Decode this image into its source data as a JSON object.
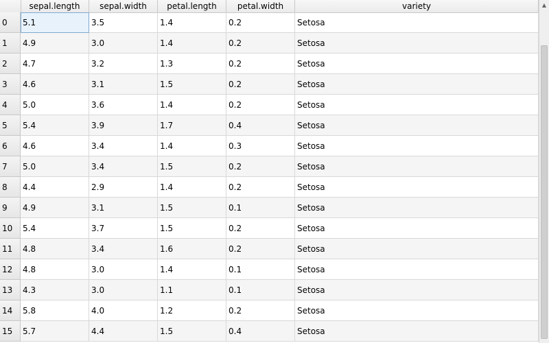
{
  "table": {
    "columns": [
      "sepal.length",
      "sepal.width",
      "petal.length",
      "petal.width",
      "variety"
    ],
    "rows": [
      {
        "index": "0",
        "cells": [
          "5.1",
          "3.5",
          "1.4",
          "0.2",
          "Setosa"
        ]
      },
      {
        "index": "1",
        "cells": [
          "4.9",
          "3.0",
          "1.4",
          "0.2",
          "Setosa"
        ]
      },
      {
        "index": "2",
        "cells": [
          "4.7",
          "3.2",
          "1.3",
          "0.2",
          "Setosa"
        ]
      },
      {
        "index": "3",
        "cells": [
          "4.6",
          "3.1",
          "1.5",
          "0.2",
          "Setosa"
        ]
      },
      {
        "index": "4",
        "cells": [
          "5.0",
          "3.6",
          "1.4",
          "0.2",
          "Setosa"
        ]
      },
      {
        "index": "5",
        "cells": [
          "5.4",
          "3.9",
          "1.7",
          "0.4",
          "Setosa"
        ]
      },
      {
        "index": "6",
        "cells": [
          "4.6",
          "3.4",
          "1.4",
          "0.3",
          "Setosa"
        ]
      },
      {
        "index": "7",
        "cells": [
          "5.0",
          "3.4",
          "1.5",
          "0.2",
          "Setosa"
        ]
      },
      {
        "index": "8",
        "cells": [
          "4.4",
          "2.9",
          "1.4",
          "0.2",
          "Setosa"
        ]
      },
      {
        "index": "9",
        "cells": [
          "4.9",
          "3.1",
          "1.5",
          "0.1",
          "Setosa"
        ]
      },
      {
        "index": "10",
        "cells": [
          "5.4",
          "3.7",
          "1.5",
          "0.2",
          "Setosa"
        ]
      },
      {
        "index": "11",
        "cells": [
          "4.8",
          "3.4",
          "1.6",
          "0.2",
          "Setosa"
        ]
      },
      {
        "index": "12",
        "cells": [
          "4.8",
          "3.0",
          "1.4",
          "0.1",
          "Setosa"
        ]
      },
      {
        "index": "13",
        "cells": [
          "4.3",
          "3.0",
          "1.1",
          "0.1",
          "Setosa"
        ]
      },
      {
        "index": "14",
        "cells": [
          "5.8",
          "4.0",
          "1.2",
          "0.2",
          "Setosa"
        ]
      },
      {
        "index": "15",
        "cells": [
          "5.7",
          "4.4",
          "1.5",
          "0.4",
          "Setosa"
        ]
      }
    ]
  },
  "colors": {
    "selected_cell": "#e8f2fb",
    "alt_row": "#f5f5f5",
    "header": "#ebebeb"
  },
  "icons": {
    "scroll_up": "scroll-up-arrow-icon"
  }
}
